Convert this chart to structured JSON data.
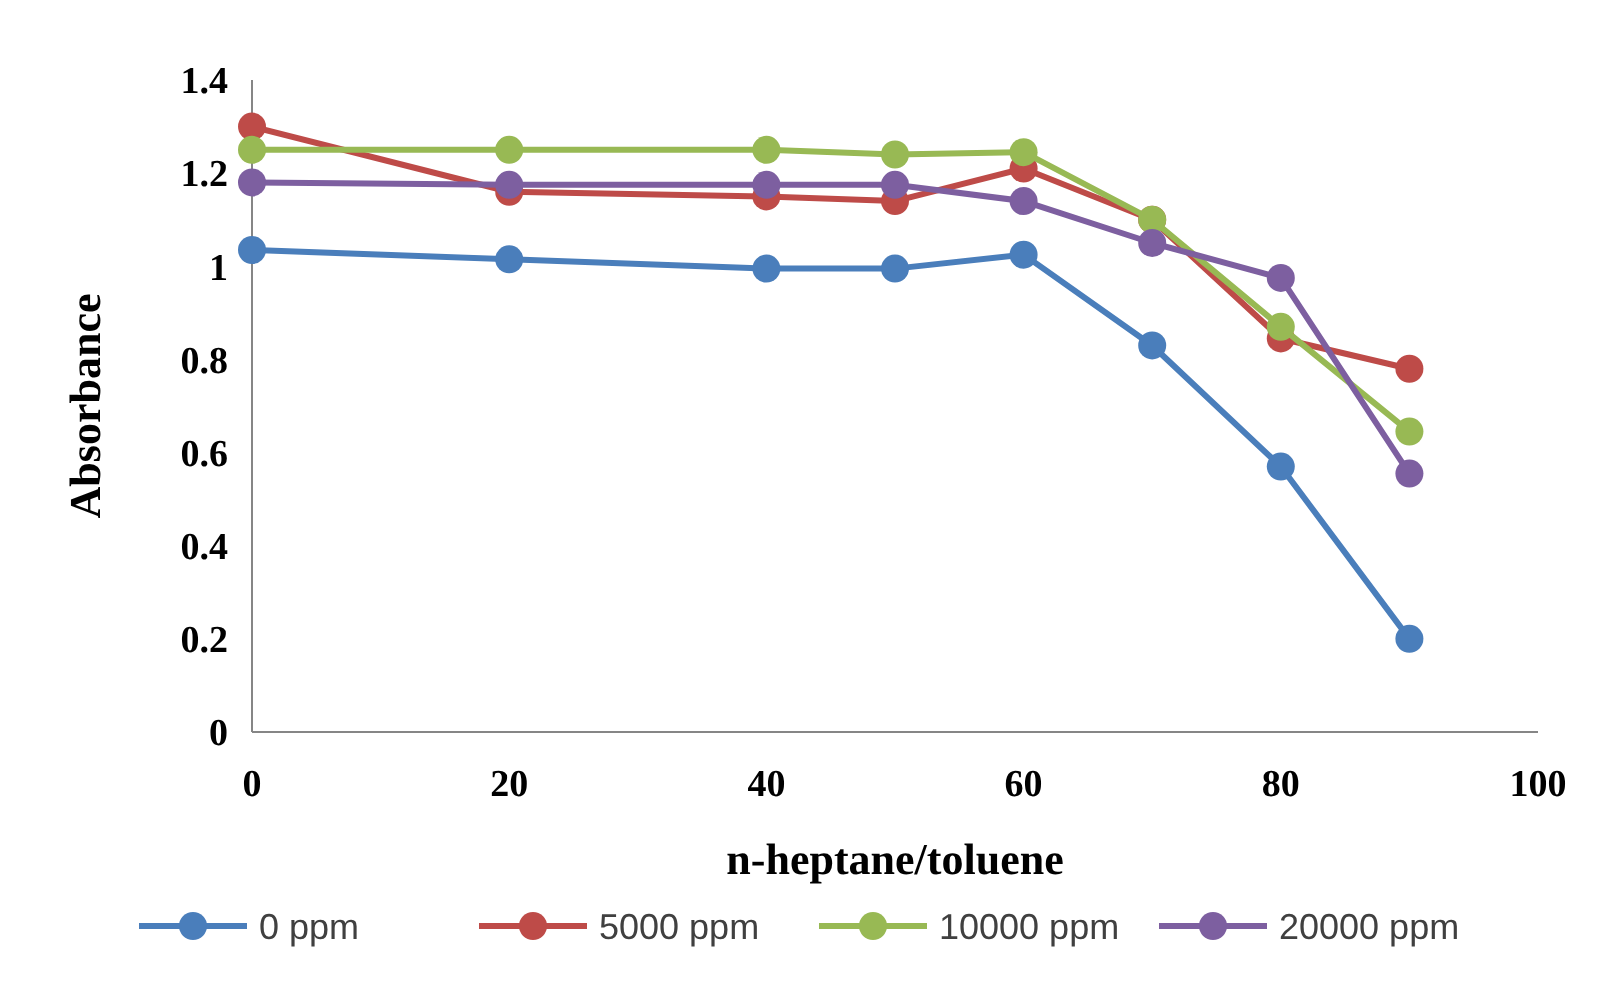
{
  "chart_data": {
    "type": "line",
    "xlabel": "n-heptane/toluene",
    "ylabel": "Absorbance",
    "x": [
      0,
      20,
      40,
      50,
      60,
      70,
      80,
      90
    ],
    "xlim": [
      0,
      100
    ],
    "xticks": [
      0,
      20,
      40,
      60,
      80,
      100
    ],
    "ylim": [
      0,
      1.4
    ],
    "yticks": [
      0,
      0.2,
      0.4,
      0.6,
      0.8,
      1,
      1.2,
      1.4
    ],
    "grid": false,
    "legend": "bottom",
    "marker": "circle",
    "line_style": "solid",
    "series": [
      {
        "name": "0 ppm",
        "color": "#4a7ebb",
        "values": [
          1.035,
          1.015,
          0.995,
          0.995,
          1.025,
          0.83,
          0.57,
          0.2
        ]
      },
      {
        "name": "5000 ppm",
        "color": "#be4b48",
        "values": [
          1.3,
          1.16,
          1.15,
          1.14,
          1.21,
          1.1,
          0.845,
          0.78
        ]
      },
      {
        "name": "10000 ppm",
        "color": "#98b954",
        "values": [
          1.25,
          1.25,
          1.25,
          1.24,
          1.245,
          1.1,
          0.87,
          0.645
        ]
      },
      {
        "name": "20000 ppm",
        "color": "#7d5fa0",
        "values": [
          1.18,
          1.175,
          1.175,
          1.175,
          1.14,
          1.05,
          0.975,
          0.555
        ]
      }
    ]
  }
}
